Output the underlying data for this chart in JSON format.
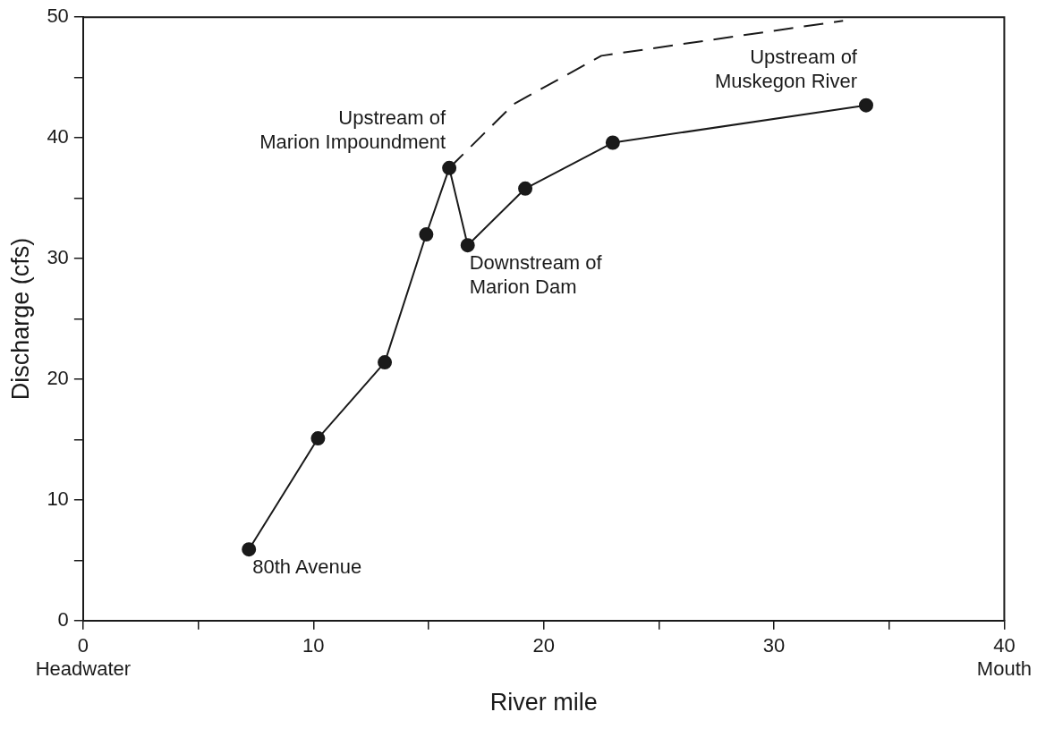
{
  "chart_data": {
    "type": "line",
    "xlabel": "River mile",
    "ylabel": "Discharge (cfs)",
    "xlim": [
      0,
      40
    ],
    "ylim": [
      0,
      50
    ],
    "xticks": [
      {
        "value": 0,
        "label": "0\nHeadwater"
      },
      {
        "value": 5,
        "label": null
      },
      10,
      {
        "value": 15,
        "label": null
      },
      20,
      {
        "value": 25,
        "label": null
      },
      30,
      {
        "value": 35,
        "label": null
      },
      {
        "value": 40,
        "label": "40\nMouth"
      }
    ],
    "yticks": [
      0,
      {
        "value": 5,
        "label": null
      },
      10,
      {
        "value": 15,
        "label": null
      },
      20,
      {
        "value": 25,
        "label": null
      },
      30,
      {
        "value": 35,
        "label": null
      },
      40,
      {
        "value": 45,
        "label": null
      },
      50
    ],
    "grid": false,
    "legend": false,
    "series": [
      {
        "color": "#1a1a1a",
        "marker": "circle",
        "line_style": "solid",
        "x": [
          7.2,
          10.2,
          13.1,
          14.9,
          15.9,
          16.7,
          19.2,
          23.0,
          34.0
        ],
        "values": [
          5.9,
          15.1,
          21.4,
          32.0,
          37.5,
          31.1,
          35.8,
          39.6,
          42.7
        ]
      },
      {
        "color": "#1a1a1a",
        "marker": "none",
        "line_style": "dashed",
        "x": [
          15.9,
          18.7,
          22.5,
          33.0
        ],
        "values": [
          37.5,
          42.8,
          46.8,
          49.7
        ]
      }
    ],
    "annotations": [
      {
        "text": "80th Avenue",
        "x": 7.2,
        "y": 5.9
      },
      {
        "text": "Upstream of\nMarion Impoundment",
        "x": 15.9,
        "y": 37.5
      },
      {
        "text": "Downstream of\nMarion Dam",
        "x": 16.7,
        "y": 31.1
      },
      {
        "text": "Upstream of\nMuskegon River",
        "x": 34.0,
        "y": 42.7
      }
    ]
  }
}
